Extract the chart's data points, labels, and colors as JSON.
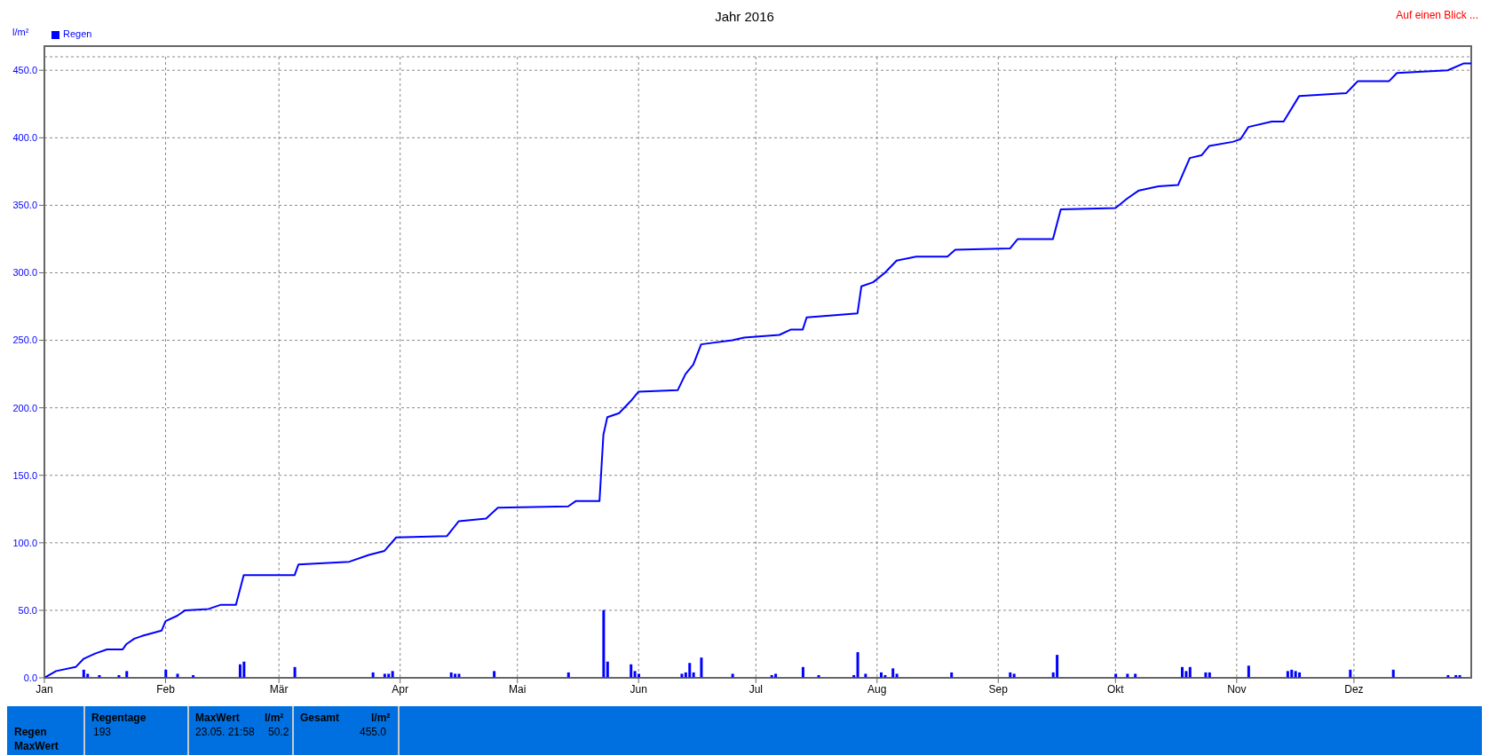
{
  "chart_data": {
    "type": "line",
    "title": "Jahr 2016",
    "ylabel": "l/m²",
    "annotations": [
      "Auf einen Blick ...",
      "Regen",
      "MaxWert",
      "Regentage",
      "193",
      "MaxWert",
      "l/m²",
      "23.05.  21:58",
      "50.2",
      "Gesamt",
      "l/m²",
      "455.0"
    ],
    "xlim": [
      "2016-01-01",
      "2016-12-31"
    ],
    "xticks": [
      {
        "value": "2016-01-01",
        "label": "Jan"
      },
      {
        "value": "2016-02-01",
        "label": "Feb"
      },
      {
        "value": "2016-03-01",
        "label": "Mär"
      },
      {
        "value": "2016-04-01",
        "label": "Apr"
      },
      {
        "value": "2016-05-01",
        "label": "Mai"
      },
      {
        "value": "2016-06-01",
        "label": "Jun"
      },
      {
        "value": "2016-07-01",
        "label": "Jul"
      },
      {
        "value": "2016-08-01",
        "label": "Aug"
      },
      {
        "value": "2016-09-01",
        "label": "Sep"
      },
      {
        "value": "2016-10-01",
        "label": "Okt"
      },
      {
        "value": "2016-11-01",
        "label": "Nov"
      },
      {
        "value": "2016-12-01",
        "label": "Dez"
      }
    ],
    "ylim": [
      0,
      460
    ],
    "yticks": [
      {
        "value": 0,
        "label": "0.0"
      },
      {
        "value": 50,
        "label": "50.0"
      },
      {
        "value": 100,
        "label": "100.0"
      },
      {
        "value": 150,
        "label": "150.0"
      },
      {
        "value": 200,
        "label": "200.0"
      },
      {
        "value": 250,
        "label": "250.0"
      },
      {
        "value": 300,
        "label": "300.0"
      },
      {
        "value": 350,
        "label": "350.0"
      },
      {
        "value": 400,
        "label": "400.0"
      },
      {
        "value": 450,
        "label": "450.0"
      }
    ],
    "grid": true,
    "legend": "top left",
    "marker": "none",
    "line_style": "solid",
    "series": [
      {
        "type": "bar",
        "name": "Regen",
        "color": "#0000ff",
        "x": [
          "2016-01-11",
          "2016-01-12",
          "2016-01-15",
          "2016-01-20",
          "2016-01-22",
          "2016-02-01",
          "2016-02-04",
          "2016-02-08",
          "2016-02-20",
          "2016-02-21",
          "2016-03-05",
          "2016-03-25",
          "2016-03-28",
          "2016-03-29",
          "2016-03-30",
          "2016-04-14",
          "2016-04-15",
          "2016-04-16",
          "2016-04-25",
          "2016-05-14",
          "2016-05-23",
          "2016-05-24",
          "2016-05-30",
          "2016-05-31",
          "2016-06-01",
          "2016-06-12",
          "2016-06-13",
          "2016-06-14",
          "2016-06-15",
          "2016-06-17",
          "2016-06-25",
          "2016-07-05",
          "2016-07-06",
          "2016-07-13",
          "2016-07-17",
          "2016-07-26",
          "2016-07-27",
          "2016-07-29",
          "2016-08-02",
          "2016-08-03",
          "2016-08-05",
          "2016-08-06",
          "2016-08-20",
          "2016-09-04",
          "2016-09-05",
          "2016-09-15",
          "2016-09-16",
          "2016-10-01",
          "2016-10-04",
          "2016-10-06",
          "2016-10-18",
          "2016-10-19",
          "2016-10-20",
          "2016-10-24",
          "2016-10-25",
          "2016-11-04",
          "2016-11-14",
          "2016-11-15",
          "2016-11-16",
          "2016-11-17",
          "2016-11-30",
          "2016-12-11",
          "2016-12-25",
          "2016-12-27",
          "2016-12-28"
        ],
        "values": [
          6,
          3,
          2,
          2,
          5,
          6,
          3,
          2,
          10,
          12,
          8,
          4,
          3,
          3,
          5,
          4,
          3,
          3,
          5,
          4,
          50.2,
          12,
          10,
          5,
          3,
          3,
          4,
          11,
          4,
          15,
          3,
          2,
          3,
          8,
          2,
          2,
          19,
          3,
          4,
          2,
          7,
          3,
          4,
          4,
          3,
          4,
          17,
          3,
          3,
          3,
          8,
          5,
          8,
          4,
          4,
          9,
          5,
          6,
          5,
          4,
          6,
          6,
          2,
          2,
          2
        ]
      },
      {
        "color": "#0000ff",
        "x": [
          "2016-01-01",
          "2016-01-04",
          "2016-01-09",
          "2016-01-11",
          "2016-01-14",
          "2016-01-17",
          "2016-01-21",
          "2016-01-22",
          "2016-01-24",
          "2016-01-26",
          "2016-01-31",
          "2016-02-01",
          "2016-02-04",
          "2016-02-06",
          "2016-02-12",
          "2016-02-15",
          "2016-02-19",
          "2016-02-21",
          "2016-03-05",
          "2016-03-06",
          "2016-03-19",
          "2016-03-24",
          "2016-03-28",
          "2016-03-31",
          "2016-04-13",
          "2016-04-16",
          "2016-04-23",
          "2016-04-26",
          "2016-05-14",
          "2016-05-16",
          "2016-05-22",
          "2016-05-23",
          "2016-05-24",
          "2016-05-27",
          "2016-05-30",
          "2016-06-01",
          "2016-06-11",
          "2016-06-13",
          "2016-06-15",
          "2016-06-17",
          "2016-06-25",
          "2016-06-28",
          "2016-07-07",
          "2016-07-10",
          "2016-07-13",
          "2016-07-14",
          "2016-07-27",
          "2016-07-28",
          "2016-07-31",
          "2016-08-03",
          "2016-08-06",
          "2016-08-11",
          "2016-08-19",
          "2016-08-21",
          "2016-09-04",
          "2016-09-06",
          "2016-09-15",
          "2016-09-17",
          "2016-10-01",
          "2016-10-04",
          "2016-10-07",
          "2016-10-12",
          "2016-10-17",
          "2016-10-20",
          "2016-10-23",
          "2016-10-25",
          "2016-10-31",
          "2016-11-02",
          "2016-11-04",
          "2016-11-10",
          "2016-11-13",
          "2016-11-17",
          "2016-11-29",
          "2016-12-01",
          "2016-12-02",
          "2016-12-10",
          "2016-12-12",
          "2016-12-25",
          "2016-12-29",
          "2016-12-31"
        ],
        "values": [
          0,
          5,
          8,
          14,
          18,
          21,
          21,
          25,
          29,
          31,
          35,
          42,
          46,
          50,
          51,
          54,
          54,
          76,
          76,
          84,
          86,
          91,
          94,
          104,
          105,
          116,
          118,
          126,
          127,
          131,
          131,
          180,
          193,
          196,
          205,
          212,
          213,
          225,
          232,
          247,
          250,
          252,
          254,
          258,
          258,
          267,
          270,
          290,
          293,
          300,
          309,
          312,
          312,
          317,
          318,
          325,
          325,
          347,
          348,
          355,
          361,
          364,
          365,
          385,
          387,
          394,
          397,
          399,
          408,
          412,
          412,
          431,
          433,
          439,
          442,
          442,
          448,
          450,
          455,
          455
        ]
      }
    ]
  }
}
